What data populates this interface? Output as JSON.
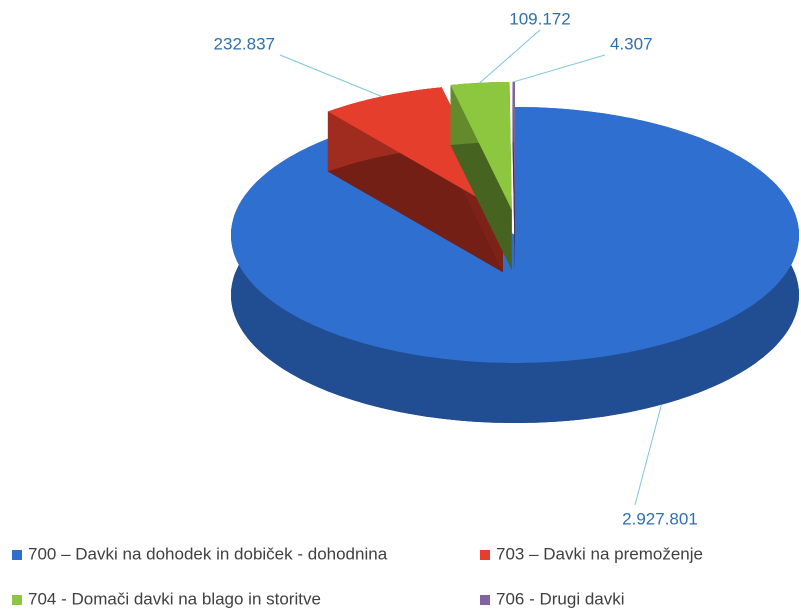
{
  "chart_data": {
    "type": "pie",
    "series": [
      {
        "name": "700 – Davki na dohodek in dobiček - dohodnina",
        "color": "#2f6fd0",
        "values": [
          2927801
        ],
        "value_labels": [
          "2.927.801"
        ]
      },
      {
        "name": "703 – Davki na premoženje",
        "color": "#e53e2c",
        "values": [
          232837
        ],
        "value_labels": [
          "232.837"
        ]
      },
      {
        "name": "704 - Domači davki na blago in storitve",
        "color": "#8dc63f",
        "values": [
          109172
        ],
        "value_labels": [
          "109.172"
        ]
      },
      {
        "name": "706 - Drugi davki",
        "color": "#8064a2",
        "values": [
          4307
        ],
        "value_labels": [
          "4.307"
        ]
      }
    ],
    "legend": "bottom"
  }
}
